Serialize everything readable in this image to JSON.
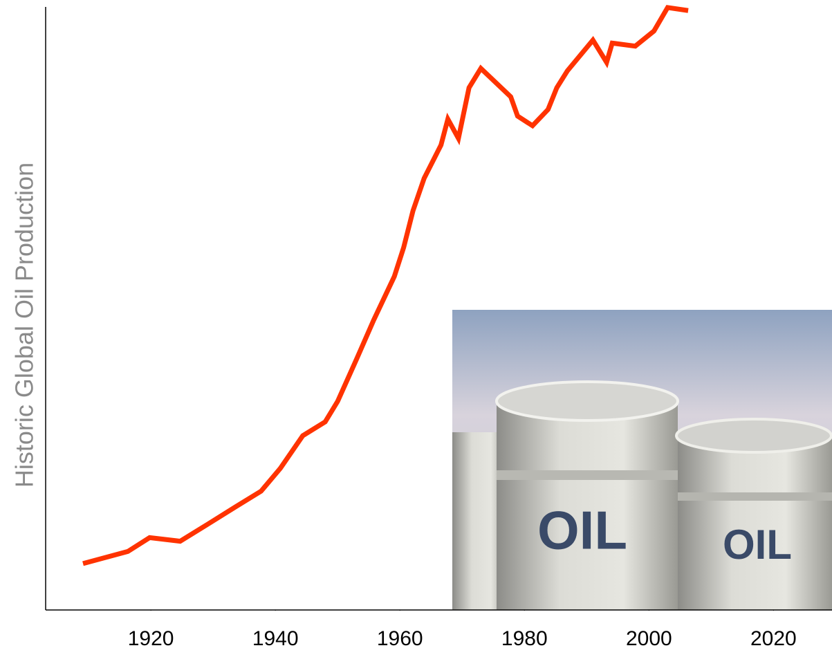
{
  "chart_data": {
    "type": "line",
    "ylabel": "Historic Global Oil Production",
    "x": [
      1909.1,
      1916.3,
      1919.8,
      1924.7,
      1929.1,
      1933.6,
      1937.7,
      1940.8,
      1944.4,
      1948,
      1950,
      1953,
      1955.8,
      1959.1,
      1960.6,
      1962.1,
      1963.9,
      1966.6,
      1967.7,
      1969.4,
      1971.1,
      1973,
      1977.8,
      1978.9,
      1981.3,
      1983.8,
      1985.2,
      1986.9,
      1991,
      1993.2,
      1994.1,
      1997.8,
      2000.8,
      2003,
      2006.3
    ],
    "series": [
      {
        "name": "Historic Global Oil Production",
        "color": "#ff3300",
        "values": [
          7.7,
          9.7,
          12.0,
          11.4,
          14.2,
          17.1,
          19.7,
          23.5,
          28.9,
          31.2,
          34.6,
          41.5,
          48.1,
          55.3,
          60.1,
          66.2,
          71.6,
          77.1,
          81.4,
          78.2,
          86.6,
          89.8,
          85.1,
          81.9,
          80.3,
          83.0,
          86.6,
          89.4,
          94.5,
          90.8,
          94.0,
          93.5,
          96.0,
          99.9,
          99.4
        ]
      }
    ],
    "xlim": [
      1903.1,
      2029.4
    ],
    "xticks": [
      1920,
      1940,
      1960,
      1980,
      2000,
      2020
    ],
    "ylim": [
      0,
      100
    ],
    "grid": false,
    "image_text": [
      "OIL",
      "OIL"
    ]
  }
}
